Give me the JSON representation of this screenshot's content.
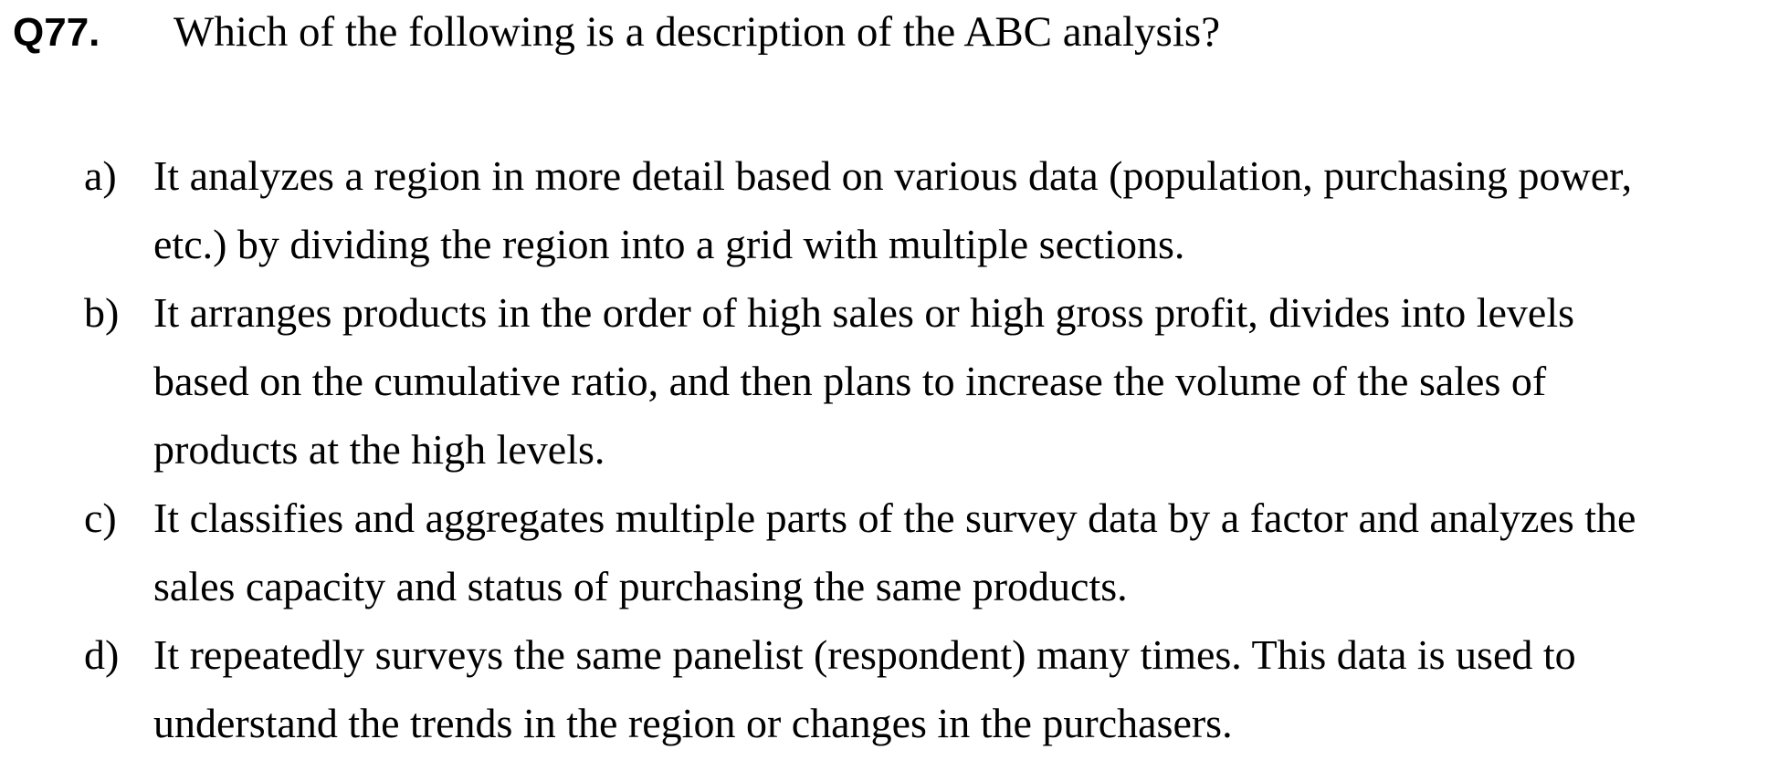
{
  "question": {
    "number": "Q77.",
    "text": "Which of the following is a description of the ABC analysis?"
  },
  "options": [
    {
      "letter": "a)",
      "lines": [
        "It analyzes a region in more detail based on various data (population, purchasing power,",
        "etc.) by dividing the region into a grid with multiple sections."
      ]
    },
    {
      "letter": "b)",
      "lines": [
        "It arranges products in the order of high sales or high gross profit, divides into levels",
        "based on the cumulative ratio, and then plans to increase the volume of the sales of",
        "products at the high levels."
      ]
    },
    {
      "letter": "c)",
      "lines": [
        "It classifies and aggregates multiple parts of the survey data by a factor and analyzes the",
        "sales capacity and status of purchasing the same products."
      ]
    },
    {
      "letter": "d)",
      "lines": [
        "It repeatedly surveys the same panelist (respondent) many times. This data is used to",
        "understand the trends in the region or changes in the purchasers."
      ]
    }
  ]
}
